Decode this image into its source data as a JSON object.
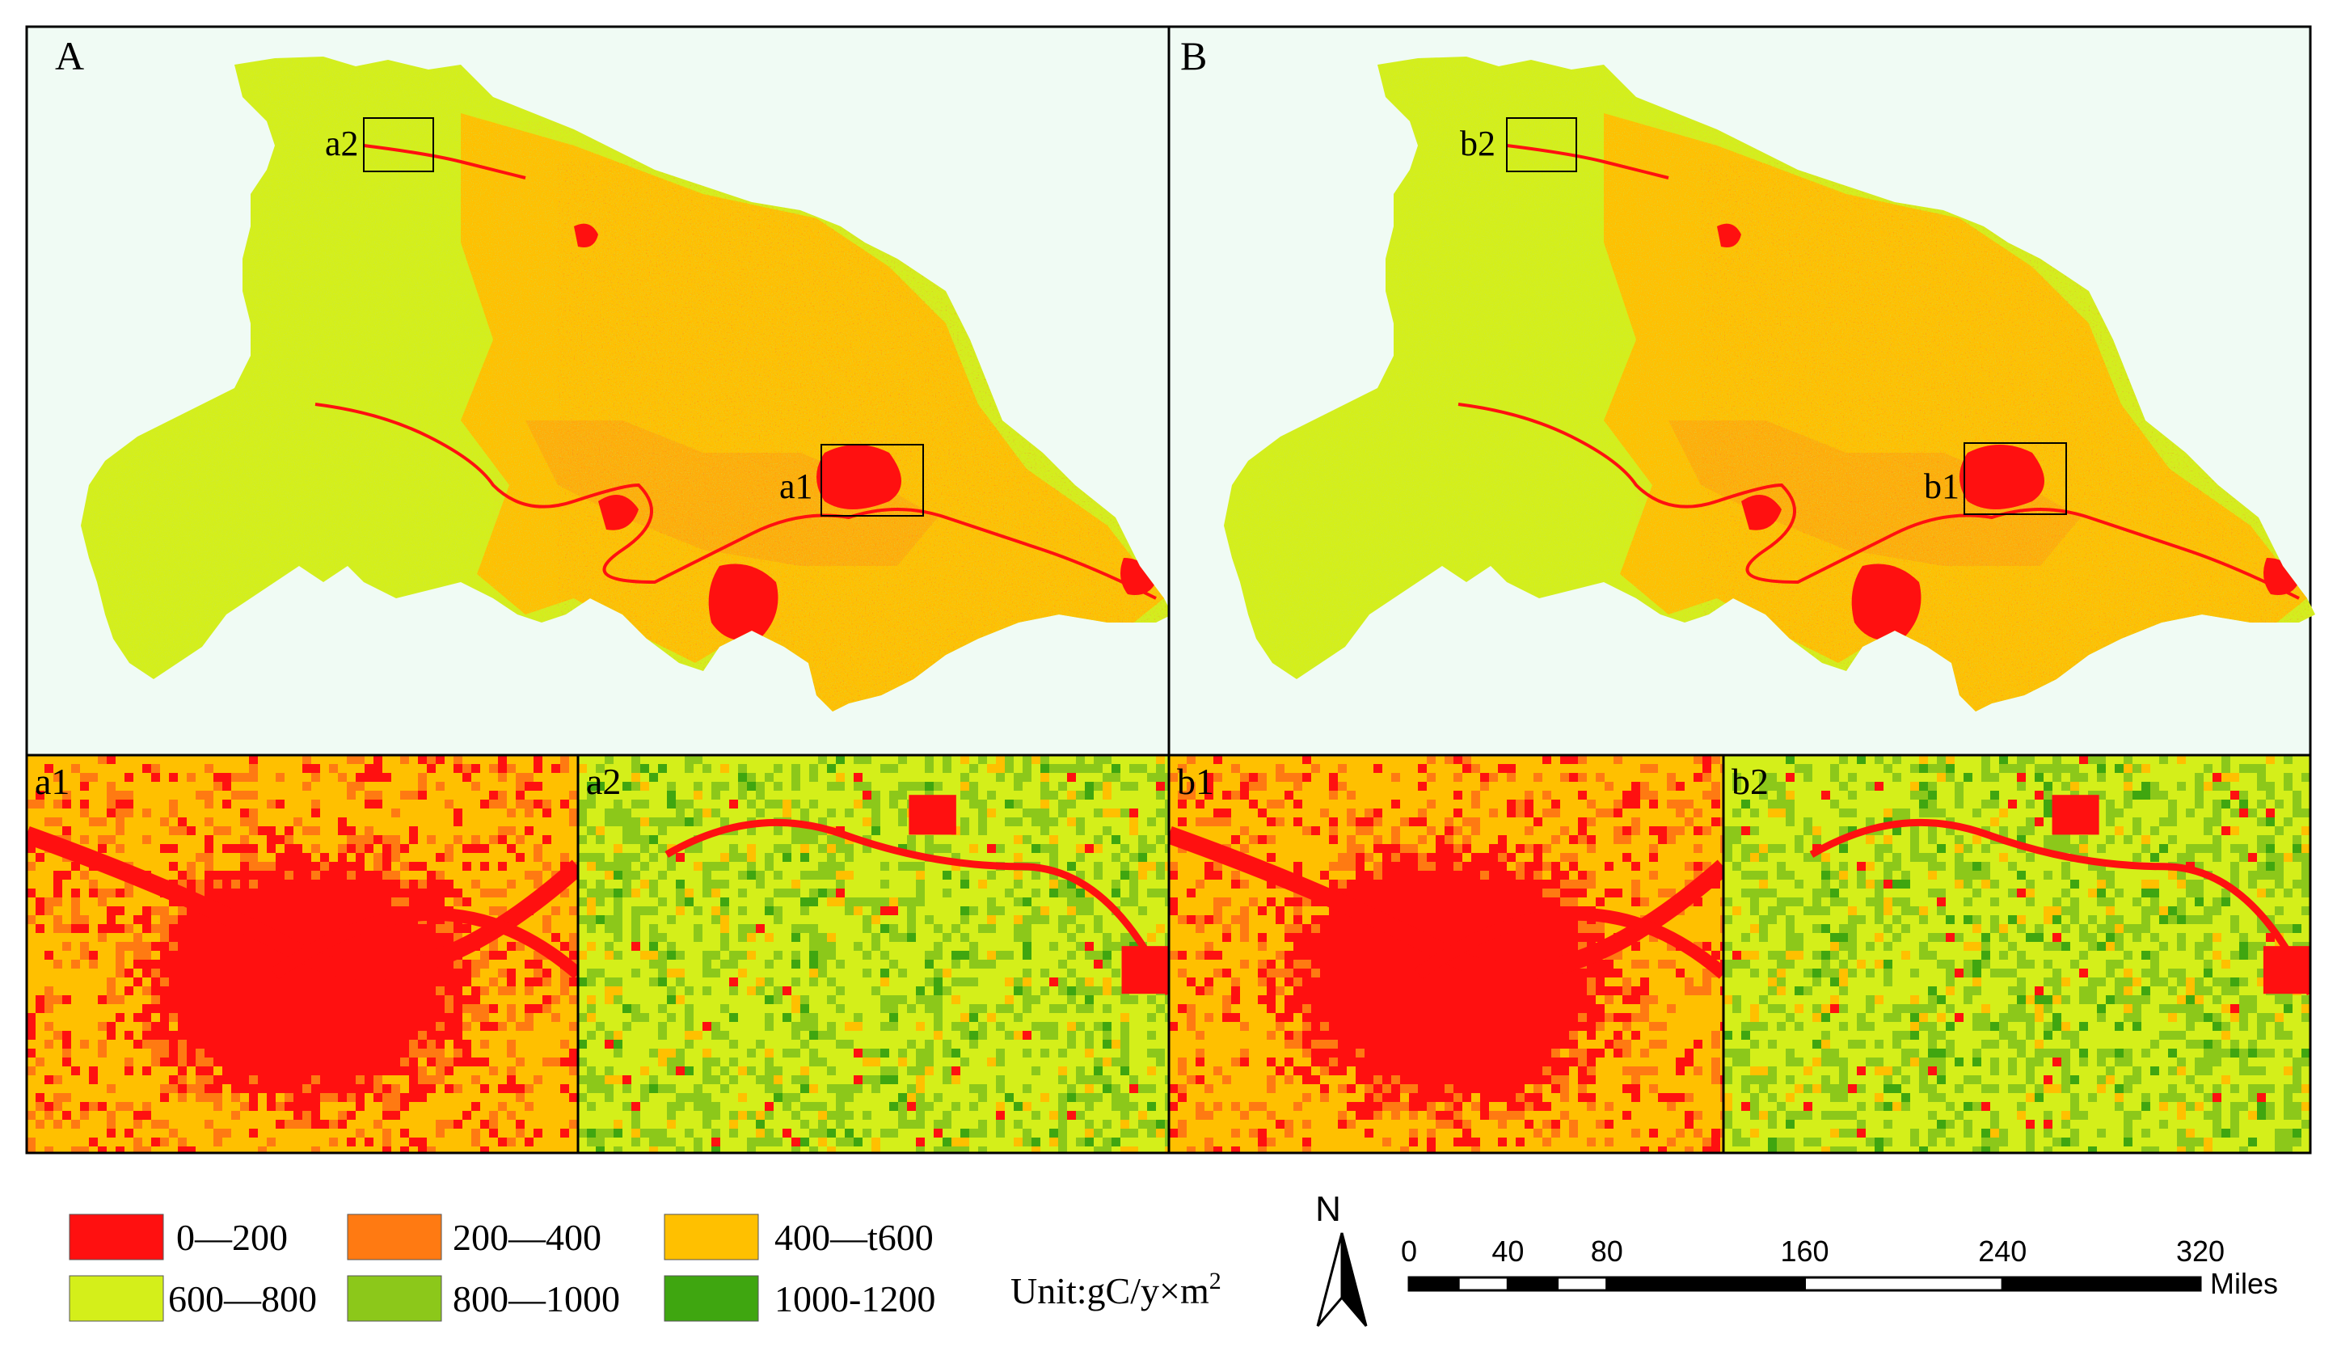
{
  "panels": {
    "A": {
      "label": "A",
      "box1": "a1",
      "box2": "a2"
    },
    "B": {
      "label": "B",
      "box1": "b1",
      "box2": "b2"
    }
  },
  "insets": [
    {
      "label": "a1",
      "kind": "urban",
      "variant": 0
    },
    {
      "label": "a2",
      "kind": "rural",
      "variant": 0
    },
    {
      "label": "b1",
      "kind": "urban",
      "variant": 1
    },
    {
      "label": "b2",
      "kind": "rural",
      "variant": 1
    }
  ],
  "legend": {
    "items": [
      {
        "label": "0—200",
        "color": "#ff1010"
      },
      {
        "label": "200—400",
        "color": "#ff7a12"
      },
      {
        "label": "400—t600",
        "color": "#ffc000"
      },
      {
        "label": "600—800",
        "color": "#d4ef1a"
      },
      {
        "label": "800—1000",
        "color": "#8cc81a"
      },
      {
        "label": "1000-1200",
        "color": "#3fa610"
      }
    ],
    "unit_prefix": "Unit:gC/y×m",
    "unit_sup": "2"
  },
  "north_arrow": {
    "label": "N"
  },
  "scale_bar": {
    "ticks": [
      "0",
      "40",
      "80",
      "160",
      "240",
      "320"
    ],
    "tick_values": [
      0,
      40,
      80,
      160,
      240,
      320
    ],
    "unit": "Miles"
  },
  "colors": {
    "map_background": "#f0fbf4",
    "frame": "#000000"
  }
}
